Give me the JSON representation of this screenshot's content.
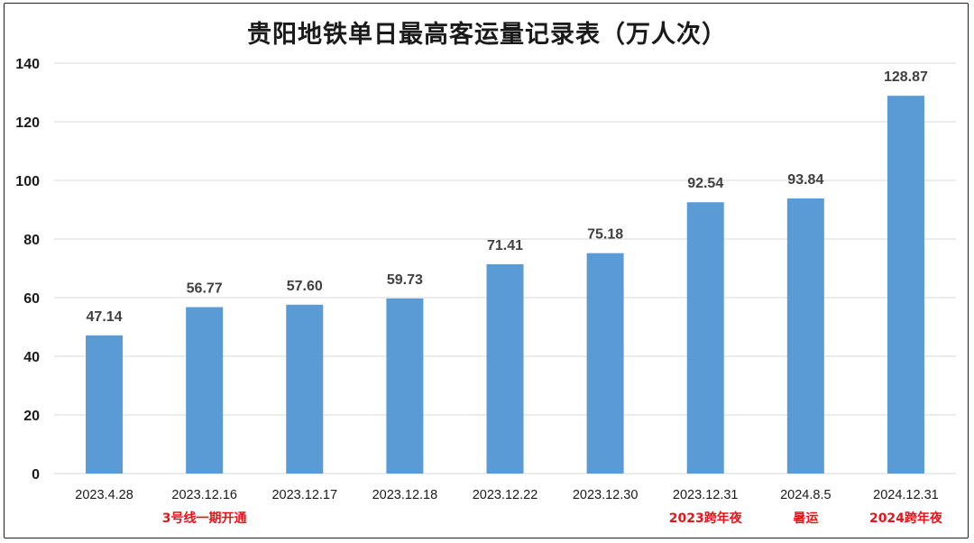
{
  "chart_data": {
    "type": "bar",
    "title": "贵阳地铁单日最高客运量记录表（万人次）",
    "categories": [
      "2023.4.28",
      "2023.12.16",
      "2023.12.17",
      "2023.12.18",
      "2023.12.22",
      "2023.12.30",
      "2023.12.31",
      "2024.8.5",
      "2024.12.31"
    ],
    "values": [
      47.14,
      56.77,
      57.6,
      59.73,
      71.41,
      75.18,
      92.54,
      93.84,
      128.87
    ],
    "value_labels": [
      "47.14",
      "56.77",
      "57.60",
      "59.73",
      "71.41",
      "75.18",
      "92.54",
      "93.84",
      "128.87"
    ],
    "notes": [
      "",
      "3号线一期开通",
      "",
      "",
      "",
      "",
      "2023跨年夜",
      "暑运",
      "2024跨年夜"
    ],
    "ylim": [
      0,
      140
    ],
    "yticks": [
      "0",
      "20",
      "40",
      "60",
      "80",
      "100",
      "120",
      "140"
    ],
    "grid": true,
    "colors": {
      "bar": "#5b9bd5",
      "note": "#e8141c",
      "grid": "#d9d9d9"
    }
  }
}
